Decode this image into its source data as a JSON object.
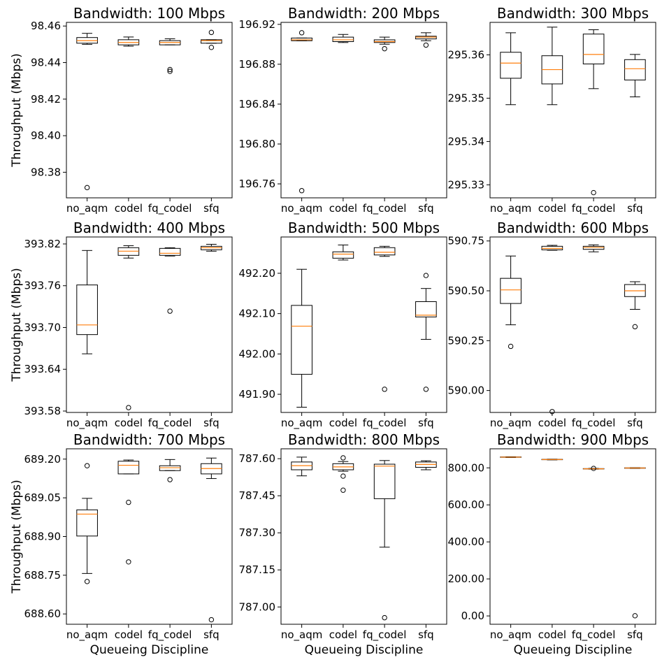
{
  "chart_data": [
    {
      "type": "box",
      "title": "Bandwidth: 100 Mbps",
      "ylabel": "Throughput (Mbps)",
      "xlabel": "",
      "categories": [
        "no_aqm",
        "codel",
        "fq_codel",
        "sfq"
      ],
      "ylim": [
        98.366,
        98.462
      ],
      "yticks": [
        98.38,
        98.4,
        98.42,
        98.44,
        98.46
      ],
      "tick_format": 2,
      "boxes": [
        {
          "whislo": 98.45,
          "q1": 98.4506,
          "med": 98.452,
          "q3": 98.4537,
          "whishi": 98.456,
          "fliers": [
            98.3716
          ]
        },
        {
          "whislo": 98.449,
          "q1": 98.4497,
          "med": 98.451,
          "q3": 98.4525,
          "whishi": 98.454,
          "fliers": []
        },
        {
          "whislo": 98.4497,
          "q1": 98.4497,
          "med": 98.451,
          "q3": 98.452,
          "whishi": 98.453,
          "fliers": [
            98.4362,
            98.4352
          ]
        },
        {
          "whislo": 98.4506,
          "q1": 98.4506,
          "med": 98.452,
          "q3": 98.4525,
          "whishi": 98.4525,
          "fliers": [
            98.4565,
            98.4483
          ]
        }
      ]
    },
    {
      "type": "box",
      "title": "Bandwidth: 200 Mbps",
      "ylabel": "",
      "xlabel": "",
      "categories": [
        "no_aqm",
        "codel",
        "fq_codel",
        "sfq"
      ],
      "ylim": [
        196.746,
        196.922
      ],
      "yticks": [
        196.76,
        196.8,
        196.84,
        196.88,
        196.92
      ],
      "tick_format": 2,
      "boxes": [
        {
          "whislo": 196.9036,
          "q1": 196.9036,
          "med": 196.9045,
          "q3": 196.9063,
          "whishi": 196.9063,
          "fliers": [
            196.9116,
            196.7532
          ]
        },
        {
          "whislo": 196.9018,
          "q1": 196.9027,
          "med": 196.9045,
          "q3": 196.9072,
          "whishi": 196.9099,
          "fliers": []
        },
        {
          "whislo": 196.9001,
          "q1": 196.9018,
          "med": 196.9027,
          "q3": 196.9045,
          "whishi": 196.9072,
          "fliers": [
            196.8956
          ]
        },
        {
          "whislo": 196.9036,
          "q1": 196.9054,
          "med": 196.9072,
          "q3": 196.9081,
          "whishi": 196.9116,
          "fliers": [
            196.8992
          ]
        }
      ]
    },
    {
      "type": "box",
      "title": "Bandwidth: 300 Mbps",
      "ylabel": "",
      "xlabel": "",
      "categories": [
        "no_aqm",
        "codel",
        "fq_codel",
        "sfq"
      ],
      "ylim": [
        295.327,
        295.3675
      ],
      "yticks": [
        295.33,
        295.34,
        295.35,
        295.36
      ],
      "tick_format": 2,
      "boxes": [
        {
          "whislo": 295.3485,
          "q1": 295.3546,
          "med": 295.3581,
          "q3": 295.3606,
          "whishi": 295.3651,
          "fliers": []
        },
        {
          "whislo": 295.3485,
          "q1": 295.3533,
          "med": 295.3566,
          "q3": 295.3598,
          "whishi": 295.3664,
          "fliers": []
        },
        {
          "whislo": 295.3522,
          "q1": 295.3579,
          "med": 295.3601,
          "q3": 295.3648,
          "whishi": 295.3658,
          "fliers": [
            295.3282
          ]
        },
        {
          "whislo": 295.3503,
          "q1": 295.3542,
          "med": 295.3568,
          "q3": 295.3589,
          "whishi": 295.3601,
          "fliers": []
        }
      ]
    },
    {
      "type": "box",
      "title": "Bandwidth: 400 Mbps",
      "ylabel": "Throughput (Mbps)",
      "xlabel": "",
      "categories": [
        "no_aqm",
        "codel",
        "fq_codel",
        "sfq"
      ],
      "ylim": [
        393.578,
        393.83
      ],
      "yticks": [
        393.58,
        393.64,
        393.7,
        393.76,
        393.82
      ],
      "tick_format": 2,
      "boxes": [
        {
          "whislo": 393.6622,
          "q1": 393.6898,
          "med": 393.7037,
          "q3": 393.7611,
          "whishi": 393.8106,
          "fliers": []
        },
        {
          "whislo": 393.7997,
          "q1": 393.8036,
          "med": 393.8096,
          "q3": 393.8146,
          "whishi": 393.8175,
          "fliers": [
            393.5849
          ]
        },
        {
          "whislo": 393.8027,
          "q1": 393.8036,
          "med": 393.8066,
          "q3": 393.8136,
          "whishi": 393.8146,
          "fliers": [
            393.7235
          ]
        },
        {
          "whislo": 393.8096,
          "q1": 393.8116,
          "med": 393.8146,
          "q3": 393.8166,
          "whishi": 393.8195,
          "fliers": []
        }
      ]
    },
    {
      "type": "box",
      "title": "Bandwidth: 500 Mbps",
      "ylabel": "",
      "xlabel": "",
      "categories": [
        "no_aqm",
        "codel",
        "fq_codel",
        "sfq"
      ],
      "ylim": [
        491.855,
        492.29
      ],
      "yticks": [
        491.9,
        492.0,
        492.1,
        492.2
      ],
      "tick_format": 2,
      "boxes": [
        {
          "whislo": 491.868,
          "q1": 491.9496,
          "med": 492.0689,
          "q3": 492.1204,
          "whishi": 492.2099,
          "fliers": []
        },
        {
          "whislo": 492.2329,
          "q1": 492.2374,
          "med": 492.2476,
          "q3": 492.2532,
          "whishi": 492.2702,
          "fliers": []
        },
        {
          "whislo": 492.2419,
          "q1": 492.2454,
          "med": 492.2521,
          "q3": 492.2635,
          "whishi": 492.2669,
          "fliers": [
            491.9125
          ]
        },
        {
          "whislo": 492.0362,
          "q1": 492.0917,
          "med": 492.0961,
          "q3": 492.1297,
          "whishi": 492.1623,
          "fliers": [
            492.1945,
            491.9125
          ]
        }
      ]
    },
    {
      "type": "box",
      "title": "Bandwidth: 600 Mbps",
      "ylabel": "",
      "xlabel": "",
      "categories": [
        "no_aqm",
        "codel",
        "fq_codel",
        "sfq"
      ],
      "ylim": [
        589.89,
        590.77
      ],
      "yticks": [
        590.0,
        590.25,
        590.5,
        590.75
      ],
      "tick_format": 2,
      "boxes": [
        {
          "whislo": 590.3295,
          "q1": 590.4365,
          "med": 590.5047,
          "q3": 590.5626,
          "whishi": 590.6746,
          "fliers": [
            590.2215
          ]
        },
        {
          "whislo": 590.7036,
          "q1": 590.7055,
          "med": 590.7127,
          "q3": 590.7233,
          "whishi": 590.7281,
          "fliers": [
            589.8943
          ]
        },
        {
          "whislo": 590.6955,
          "q1": 590.7079,
          "med": 590.7177,
          "q3": 590.7233,
          "whishi": 590.7306,
          "fliers": []
        },
        {
          "whislo": 590.4071,
          "q1": 590.4711,
          "med": 590.5001,
          "q3": 590.5315,
          "whishi": 590.5456,
          "fliers": [
            590.3201
          ]
        }
      ]
    },
    {
      "type": "box",
      "title": "Bandwidth: 700 Mbps",
      "ylabel": "Throughput (Mbps)",
      "xlabel": "Queueing Discipline",
      "categories": [
        "no_aqm",
        "codel",
        "fq_codel",
        "sfq"
      ],
      "ylim": [
        688.56,
        689.24
      ],
      "yticks": [
        688.6,
        688.75,
        688.9,
        689.05,
        689.2
      ],
      "tick_format": 2,
      "boxes": [
        {
          "whislo": 688.7568,
          "q1": 688.9019,
          "med": 688.9868,
          "q3": 689.0034,
          "whishi": 689.0479,
          "fliers": [
            689.1743,
            688.7256
          ]
        },
        {
          "whislo": 689.1427,
          "q1": 689.1427,
          "med": 689.1761,
          "q3": 689.1918,
          "whishi": 689.1965,
          "fliers": [
            689.0325,
            688.8017
          ]
        },
        {
          "whislo": 689.1555,
          "q1": 689.1555,
          "med": 689.1667,
          "q3": 689.1743,
          "whishi": 689.1984,
          "fliers": [
            689.1204
          ]
        },
        {
          "whislo": 689.1247,
          "q1": 689.1427,
          "med": 689.1634,
          "q3": 689.1824,
          "whishi": 689.2041,
          "fliers": [
            688.5775
          ]
        }
      ]
    },
    {
      "type": "box",
      "title": "Bandwidth: 800 Mbps",
      "ylabel": "",
      "xlabel": "Queueing Discipline",
      "categories": [
        "no_aqm",
        "codel",
        "fq_codel",
        "sfq"
      ],
      "ylim": [
        786.93,
        787.64
      ],
      "yticks": [
        787.0,
        787.15,
        787.3,
        787.45,
        787.6
      ],
      "tick_format": 2,
      "boxes": [
        {
          "whislo": 787.5305,
          "q1": 787.5551,
          "med": 787.5718,
          "q3": 787.5866,
          "whishi": 787.6063,
          "fliers": []
        },
        {
          "whislo": 787.5492,
          "q1": 787.5551,
          "med": 787.5669,
          "q3": 787.5797,
          "whishi": 787.5885,
          "fliers": [
            787.6033,
            787.5295,
            787.4725
          ]
        },
        {
          "whislo": 787.2419,
          "q1": 787.4381,
          "med": 787.5698,
          "q3": 787.5777,
          "whishi": 787.5925,
          "fliers": [
            786.9565
          ]
        },
        {
          "whislo": 787.5551,
          "q1": 787.5649,
          "med": 787.5767,
          "q3": 787.5866,
          "whishi": 787.5915,
          "fliers": []
        }
      ]
    },
    {
      "type": "box",
      "title": "Bandwidth: 900 Mbps",
      "ylabel": "",
      "xlabel": "Queueing Discipline",
      "categories": [
        "no_aqm",
        "codel",
        "fq_codel",
        "sfq"
      ],
      "ylim": [
        -45,
        903
      ],
      "yticks": [
        0.0,
        200.0,
        400.0,
        600.0,
        800.0
      ],
      "tick_format": 2,
      "boxes": [
        {
          "whislo": 856,
          "q1": 857,
          "med": 858,
          "q3": 859,
          "whishi": 860,
          "fliers": []
        },
        {
          "whislo": 843,
          "q1": 844,
          "med": 845,
          "q3": 846,
          "whishi": 847,
          "fliers": []
        },
        {
          "whislo": 793,
          "q1": 794,
          "med": 795,
          "q3": 796,
          "whishi": 797,
          "fliers": [
            797
          ]
        },
        {
          "whislo": 797,
          "q1": 798,
          "med": 799,
          "q3": 800,
          "whishi": 801,
          "fliers": [
            1
          ]
        }
      ]
    }
  ]
}
